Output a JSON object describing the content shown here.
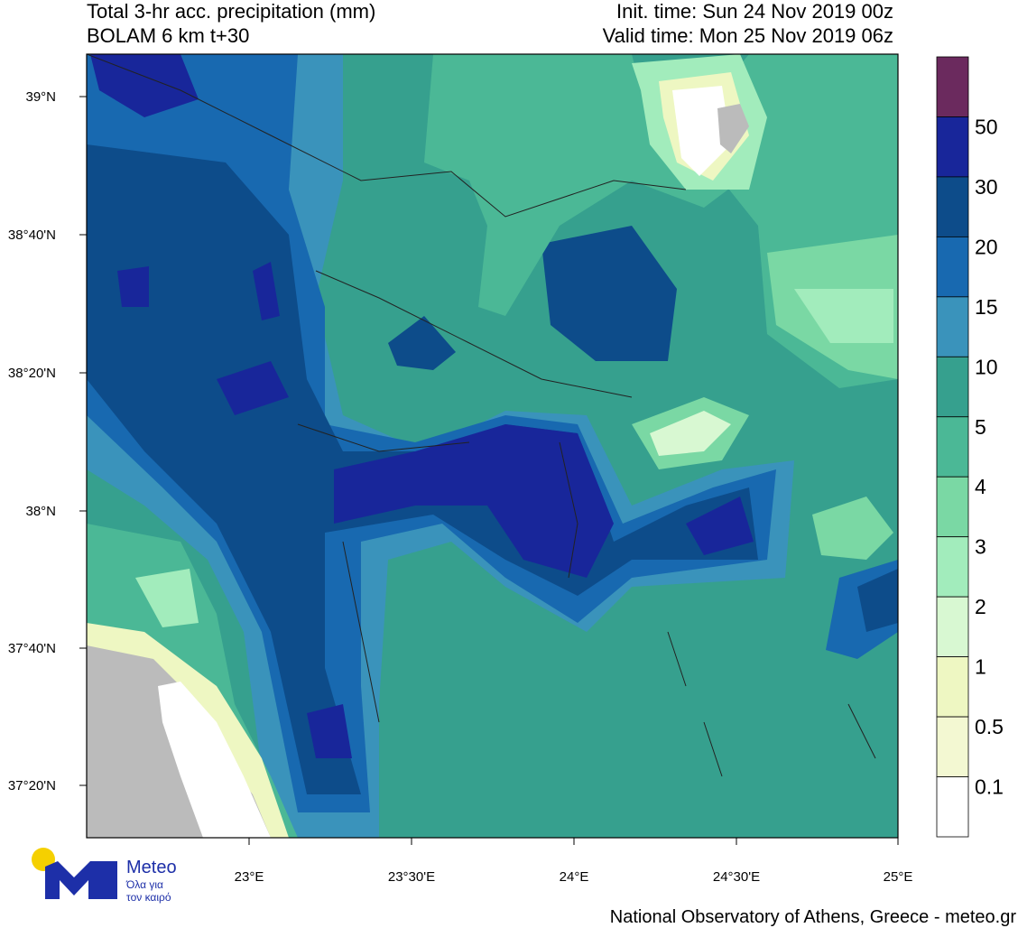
{
  "header": {
    "title_left": [
      "Total 3-hr acc. precipitation (mm)",
      "BOLAM 6 km t+30"
    ],
    "title_right": [
      "Init. time: Sun 24 Nov 2019 00z",
      "Valid time: Mon 25 Nov 2019 06z"
    ]
  },
  "map": {
    "lat_labels": [
      "39°N",
      "38°40'N",
      "38°20'N",
      "38°N",
      "37°40'N",
      "37°20'N"
    ],
    "lon_labels": [
      "23°E",
      "23°30'E",
      "24°E",
      "24°30'E",
      "25°E"
    ]
  },
  "colorbar": {
    "labels": [
      "50",
      "30",
      "20",
      "15",
      "10",
      "5",
      "4",
      "3",
      "2",
      "1",
      "0.5",
      "0.1"
    ],
    "colors": [
      "#6b2a5e",
      "#18269a",
      "#0d4c8a",
      "#1869b0",
      "#3a93bb",
      "#36a08e",
      "#4bb896",
      "#7ad8a4",
      "#a2ecbc",
      "#d8f8d2",
      "#eef7c2",
      "#f3f8d2",
      "#ffffff"
    ]
  },
  "logo": {
    "name": "Meteo",
    "tagline": [
      "Όλα για",
      "τον καιρό"
    ]
  },
  "footer": "National Observatory of Athens, Greece - meteo.gr"
}
